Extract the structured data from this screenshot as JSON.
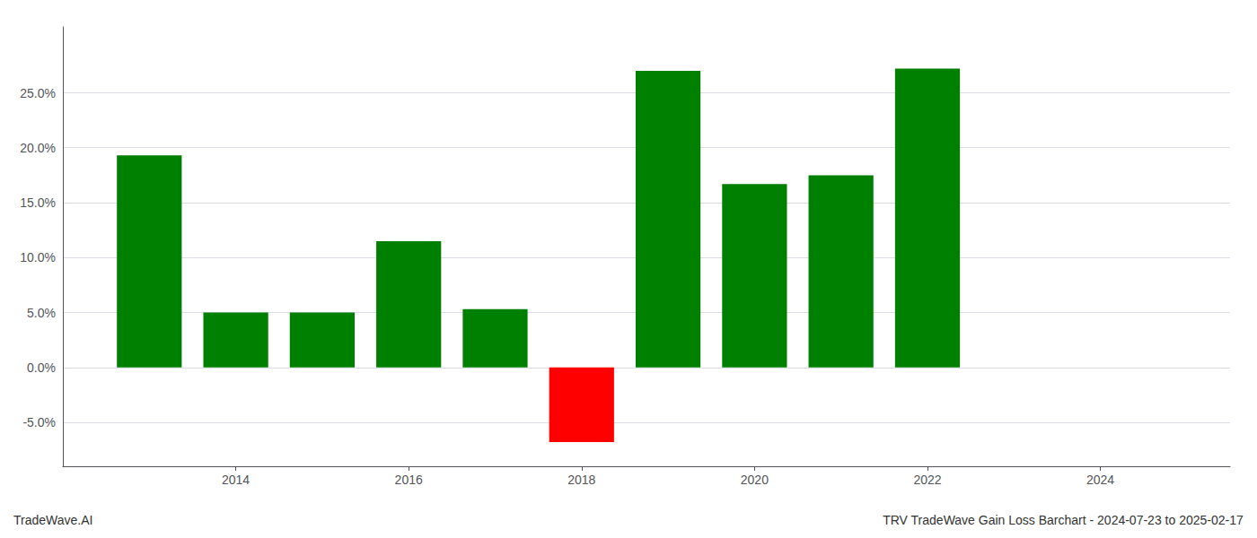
{
  "chart_data": {
    "type": "bar",
    "title": "TRV TradeWave Gain Loss Barchart - 2024-07-23 to 2025-02-17",
    "annotations": [
      "TradeWave.AI"
    ],
    "x": [
      2013,
      2014,
      2015,
      2016,
      2017,
      2018,
      2019,
      2020,
      2021,
      2022
    ],
    "values": [
      0.193,
      0.05,
      0.05,
      0.115,
      0.053,
      -0.068,
      0.27,
      0.167,
      0.175,
      0.272
    ],
    "colors": [
      "#008000",
      "#008000",
      "#008000",
      "#008000",
      "#008000",
      "#ff0000",
      "#008000",
      "#008000",
      "#008000",
      "#008000"
    ],
    "xlim": [
      2012.0,
      2025.5
    ],
    "xticks": [
      2014,
      2016,
      2018,
      2020,
      2022,
      2024
    ],
    "ylim": [
      -0.09,
      0.31
    ],
    "yticks": [
      {
        "value": -0.05,
        "label": "-5.0%"
      },
      {
        "value": 0.0,
        "label": "0.0%"
      },
      {
        "value": 0.05,
        "label": "5.0%"
      },
      {
        "value": 0.1,
        "label": "10.0%"
      },
      {
        "value": 0.15,
        "label": "15.0%"
      },
      {
        "value": 0.2,
        "label": "20.0%"
      },
      {
        "value": 0.25,
        "label": "25.0%"
      }
    ],
    "grid": true
  }
}
